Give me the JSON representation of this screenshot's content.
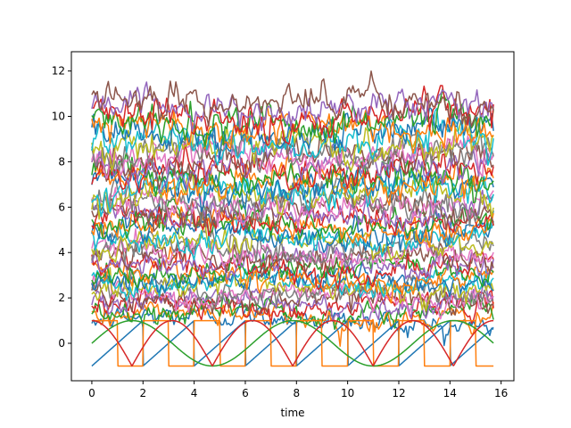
{
  "chart_data": {
    "type": "line",
    "title": "",
    "xlabel": "time",
    "ylabel": "",
    "xlim": [
      -0.8,
      16.5
    ],
    "ylim": [
      -1.65,
      12.85
    ],
    "xticks": [
      0,
      2,
      4,
      6,
      8,
      10,
      12,
      14,
      16
    ],
    "yticks": [
      0,
      2,
      4,
      6,
      8,
      10,
      12
    ],
    "grid": false,
    "legend": "none",
    "t_range": [
      0,
      15.7
    ],
    "colors": [
      "#1f77b4",
      "#ff7f0e",
      "#2ca02c",
      "#d62728",
      "#9467bd",
      "#8c564b",
      "#e377c2",
      "#7f7f7f",
      "#bcbd22",
      "#17becf"
    ],
    "deterministic_series": [
      {
        "kind": "sawtooth",
        "period": 2,
        "amplitude": 1,
        "offset": 0,
        "color": "#1f77b4"
      },
      {
        "kind": "square",
        "period": 2,
        "amplitude": 1,
        "offset": 0,
        "color": "#ff7f0e"
      },
      {
        "kind": "sine",
        "period": 6.2832,
        "amplitude": 1,
        "offset": 0,
        "color": "#2ca02c"
      },
      {
        "kind": "abs-sine",
        "period": 6.2832,
        "amplitude": 2,
        "offset": -1,
        "color": "#d62728"
      }
    ],
    "noisy_series_count": 46,
    "noisy_series_means": [
      1.0,
      1.2,
      1.4,
      1.6,
      1.8,
      2.0,
      2.1,
      2.3,
      2.5,
      2.7,
      2.9,
      3.0,
      3.2,
      3.4,
      3.6,
      3.8,
      4.0,
      4.2,
      4.4,
      4.7,
      4.9,
      5.1,
      5.3,
      5.5,
      5.7,
      5.9,
      6.1,
      6.3,
      6.6,
      6.8,
      7.0,
      7.2,
      7.4,
      7.6,
      7.9,
      8.1,
      8.3,
      8.5,
      8.8,
      9.0,
      9.3,
      9.5,
      9.8,
      10.1,
      10.4,
      10.7
    ]
  }
}
